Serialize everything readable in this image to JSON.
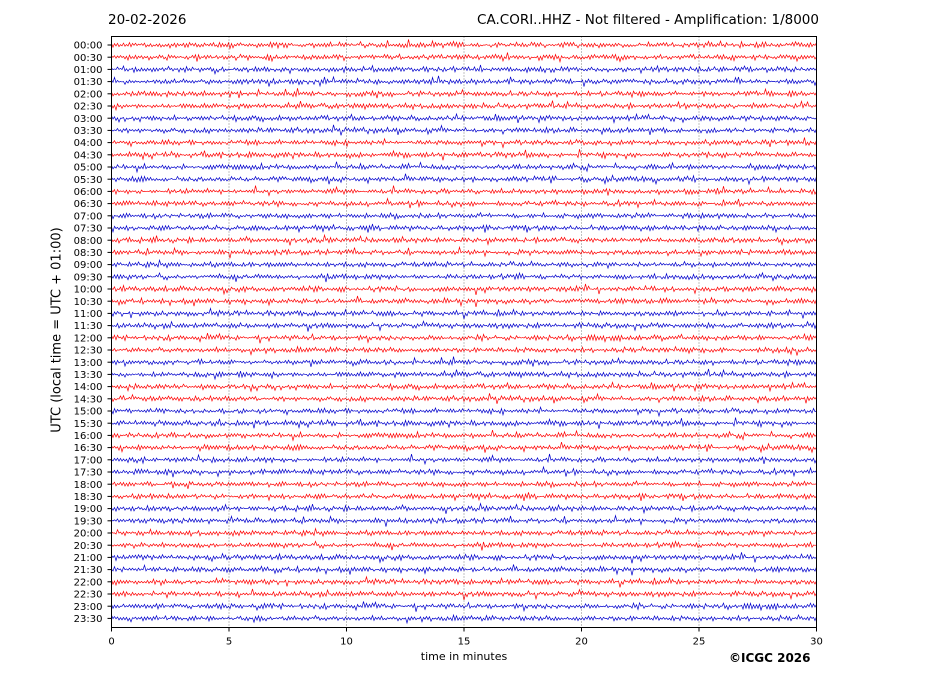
{
  "header": {
    "date": "20-02-2026",
    "title": "CA.CORI..HHZ - Not filtered - Amplification: 1/8000"
  },
  "footer": {
    "copyright": "©ICGC 2026"
  },
  "chart_data": {
    "type": "line",
    "title": "CA.CORI..HHZ - Not filtered - Amplification: 1/8000",
    "xlabel": "time in minutes",
    "ylabel": "UTC (local time = UTC + 01:00)",
    "xlim": [
      0,
      30
    ],
    "x_ticks": [
      0,
      5,
      10,
      15,
      20,
      25,
      30
    ],
    "grid": {
      "x": true,
      "y": false,
      "style": "dotted"
    },
    "row_labels": [
      "00:00",
      "00:30",
      "01:00",
      "01:30",
      "02:00",
      "02:30",
      "03:00",
      "03:30",
      "04:00",
      "04:30",
      "05:00",
      "05:30",
      "06:00",
      "06:30",
      "07:00",
      "07:30",
      "08:00",
      "08:30",
      "09:00",
      "09:30",
      "10:00",
      "10:30",
      "11:00",
      "11:30",
      "12:00",
      "12:30",
      "13:00",
      "13:30",
      "14:00",
      "14:30",
      "15:00",
      "15:30",
      "16:00",
      "16:30",
      "17:00",
      "17:30",
      "18:00",
      "18:30",
      "19:00",
      "19:30",
      "20:00",
      "20:30",
      "21:00",
      "21:30",
      "22:00",
      "22:30",
      "23:00",
      "23:30"
    ],
    "trace_colors": [
      "#ff0000",
      "#0000cc"
    ],
    "color_pattern": "alternating pairs: red, red, blue, blue"
  }
}
